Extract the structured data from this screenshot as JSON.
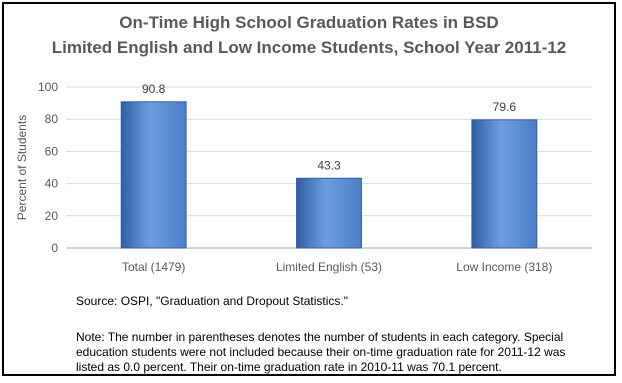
{
  "chart_data": {
    "type": "bar",
    "title_line1": "On-Time High School Graduation Rates in BSD",
    "title_line2": "Limited English and Low Income Students, School Year 2011-12",
    "ylabel": "Percent of Students",
    "xlabel": "",
    "categories": [
      "Total (1479)",
      "Limited English (53)",
      "Low Income (318)"
    ],
    "values": [
      90.8,
      43.3,
      79.6
    ],
    "data_labels": [
      "90.8",
      "43.3",
      "79.6"
    ],
    "ylim": [
      0,
      100
    ],
    "yticks": [
      0,
      20,
      40,
      60,
      80,
      100
    ],
    "grid": true,
    "legend": "none",
    "bar_color": "#4a7ec6",
    "bar_color_light": "#6f9ee0",
    "bar_color_dark": "#2f5fa3"
  },
  "source": "Source: OSPI, \"Graduation and Dropout Statistics.\"",
  "note_lines": [
    "Note: The number in parentheses denotes the number of students in each category. Special",
    "education students were not included because their on-time graduation rate for 2011-12 was",
    "listed as 0.0 percent. Their on-time graduation rate in 2010-11 was 70.1 percent."
  ]
}
